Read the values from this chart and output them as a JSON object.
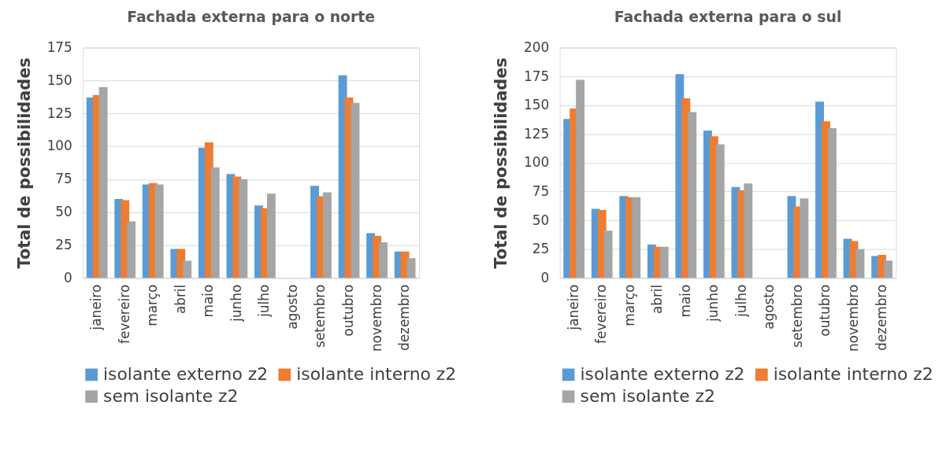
{
  "chart_data": [
    {
      "type": "bar",
      "title": "Fachada externa para o norte",
      "ylabel": "Total de possibilidades",
      "categories": [
        "janeiro",
        "fevereiro",
        "março",
        "abril",
        "maio",
        "junho",
        "julho",
        "agosto",
        "setembro",
        "outubro",
        "novembro",
        "dezembro"
      ],
      "ylim": [
        0,
        175
      ],
      "yticks": [
        0,
        25,
        50,
        75,
        100,
        125,
        150,
        175
      ],
      "grid": "y",
      "legend": "bottom",
      "series": [
        {
          "name": "isolante externo z2",
          "color": "#5b9bd5",
          "values": [
            137,
            60,
            71,
            22,
            99,
            79,
            55,
            null,
            70,
            154,
            34,
            20
          ]
        },
        {
          "name": "isolante interno z2",
          "color": "#ed7d31",
          "values": [
            139,
            59,
            72,
            22,
            103,
            77,
            53,
            null,
            62,
            137,
            32,
            20
          ]
        },
        {
          "name": "sem isolante z2",
          "color": "#a5a5a5",
          "values": [
            145,
            43,
            71,
            13,
            84,
            75,
            64,
            null,
            65,
            133,
            27,
            15
          ]
        }
      ]
    },
    {
      "type": "bar",
      "title": "Fachada externa para o sul",
      "ylabel": "Total de possibilidades",
      "categories": [
        "janeiro",
        "fevereiro",
        "março",
        "abril",
        "maio",
        "junho",
        "julho",
        "agosto",
        "setembro",
        "outubro",
        "novembro",
        "dezembro"
      ],
      "ylim": [
        0,
        200
      ],
      "yticks": [
        0,
        25,
        50,
        75,
        100,
        125,
        150,
        175,
        200
      ],
      "grid": "y",
      "legend": "bottom",
      "series": [
        {
          "name": "isolante externo z2",
          "color": "#5b9bd5",
          "values": [
            138,
            60,
            71,
            29,
            177,
            128,
            79,
            null,
            71,
            153,
            34,
            19
          ]
        },
        {
          "name": "isolante interno z2",
          "color": "#ed7d31",
          "values": [
            147,
            59,
            70,
            27,
            156,
            123,
            76,
            null,
            62,
            136,
            32,
            20
          ]
        },
        {
          "name": "sem isolante z2",
          "color": "#a5a5a5",
          "values": [
            172,
            41,
            70,
            27,
            144,
            116,
            82,
            null,
            69,
            130,
            25,
            15
          ]
        }
      ]
    }
  ]
}
